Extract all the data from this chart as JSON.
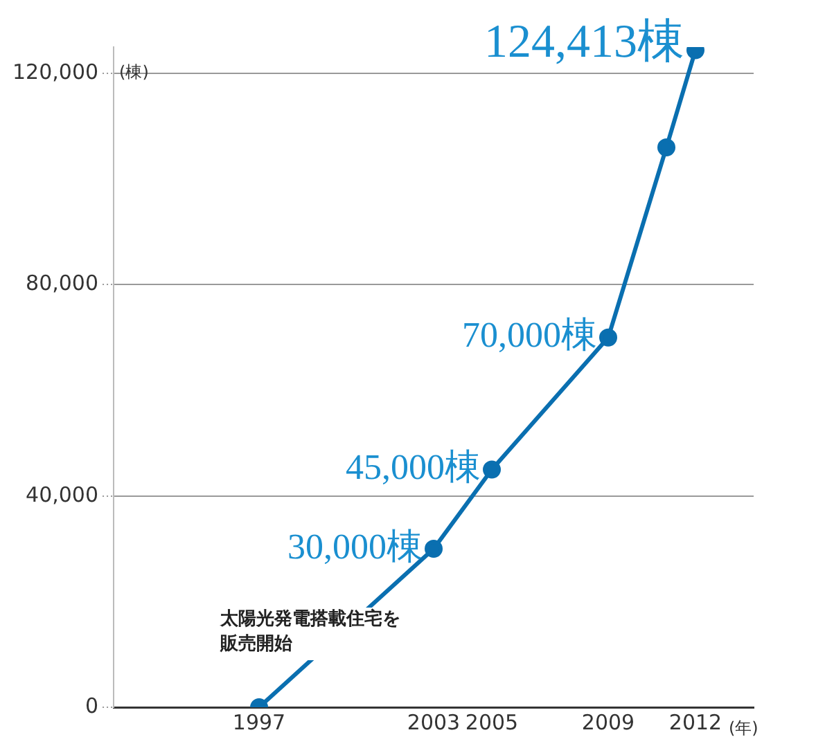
{
  "chart_data": {
    "type": "line",
    "ylabel": "(棟)",
    "xlabel": "(年)",
    "x": [
      1997,
      2003,
      2005,
      2009,
      2011,
      2012
    ],
    "series": [
      {
        "color": "#0a6fb0",
        "values": [
          0,
          30000,
          45000,
          70000,
          106000,
          124413
        ],
        "value_labels": [
          null,
          "30,000棟",
          "45,000棟",
          "70,000棟",
          null,
          "124,413棟"
        ]
      }
    ],
    "xlim": [
      1992,
      2014
    ],
    "xticks": [
      1997,
      2003,
      2005,
      2009,
      2012
    ],
    "ylim": [
      0,
      125000
    ],
    "yticks": [
      0,
      {
        "value": 40000,
        "label": "40,000"
      },
      {
        "value": 80000,
        "label": "80,000"
      },
      {
        "value": 120000,
        "label": "120,000"
      }
    ],
    "grid": "y",
    "marker": "circle",
    "line_style": "solid",
    "legend": false,
    "annotations": [
      {
        "text": "太陽光発電搭載住宅を販売開始",
        "x": 1997,
        "y": 0
      }
    ]
  }
}
